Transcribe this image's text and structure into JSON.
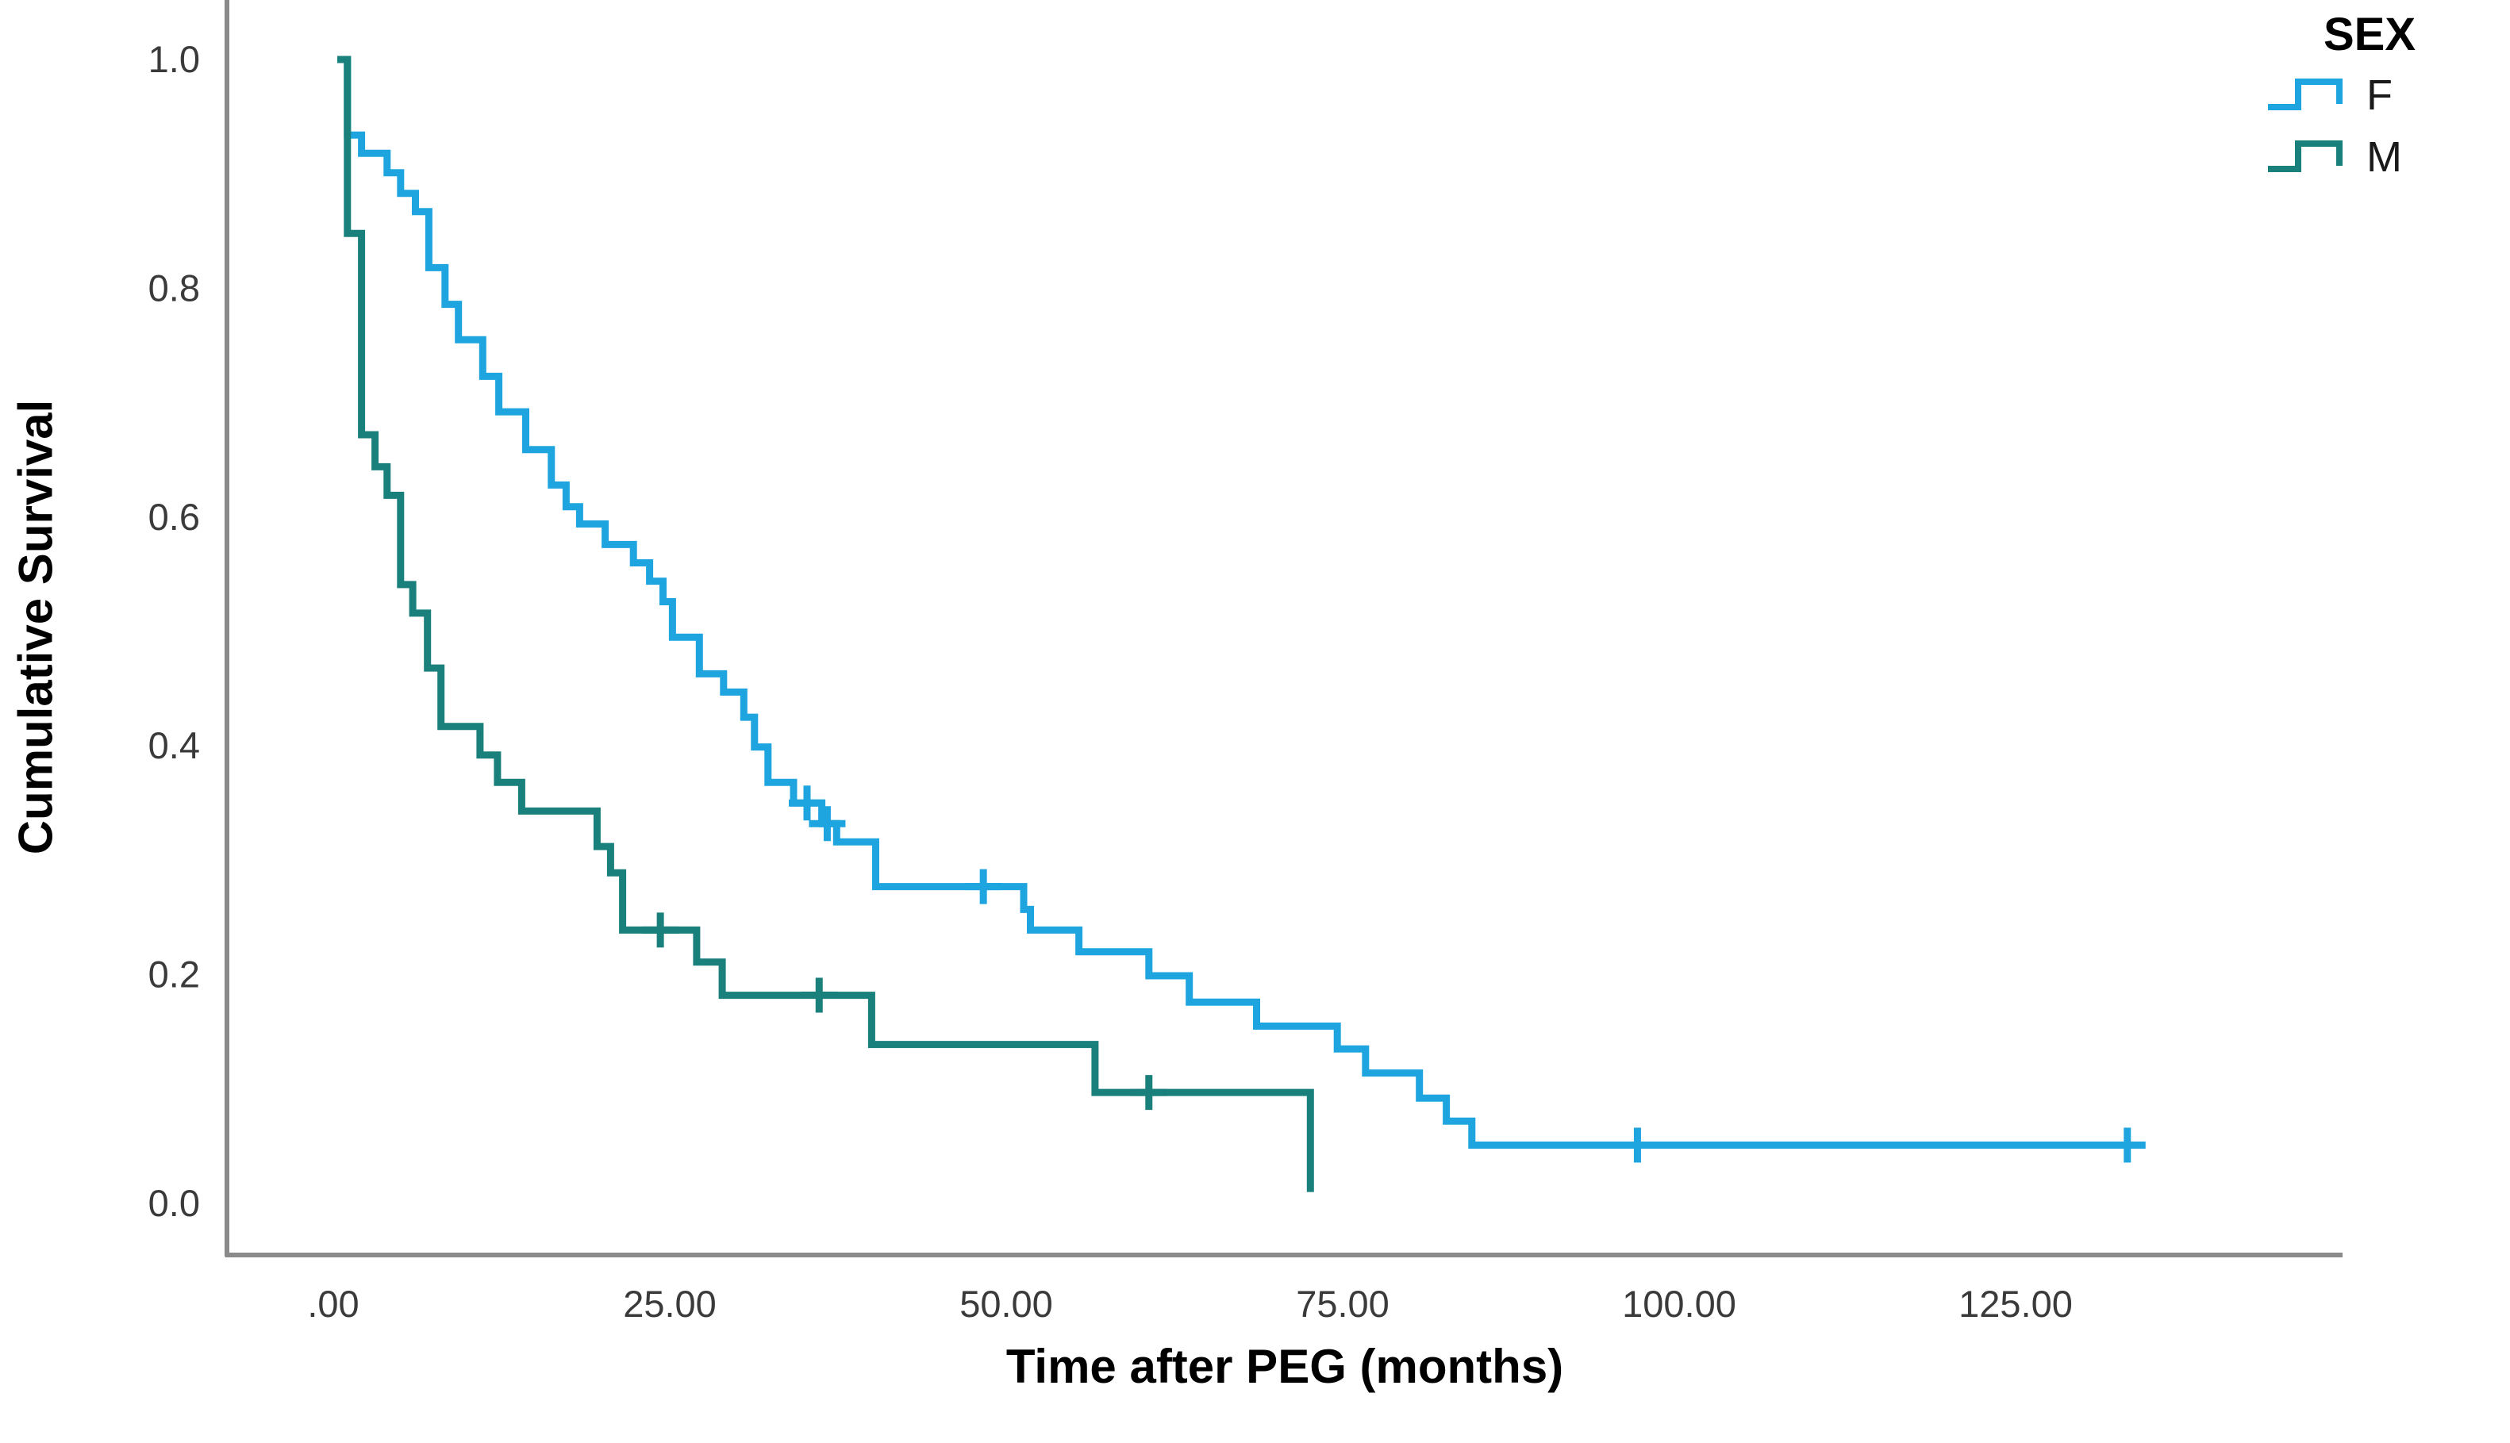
{
  "chart_data": {
    "type": "line",
    "subtype": "kaplan-meier-step",
    "title": "",
    "xlabel": "Time after PEG (months)",
    "ylabel": "Cumulative Survival",
    "xlim": [
      -8,
      149
    ],
    "ylim": [
      0.0,
      1.0
    ],
    "grid": false,
    "axis_color": "#8a8a8a",
    "tick_label_color": "#3a3a3a",
    "x_ticks": [
      {
        "value": 0,
        "label": ".00"
      },
      {
        "value": 25,
        "label": "25.00"
      },
      {
        "value": 50,
        "label": "50.00"
      },
      {
        "value": 75,
        "label": "75.00"
      },
      {
        "value": 100,
        "label": "100.00"
      },
      {
        "value": 125,
        "label": "125.00"
      }
    ],
    "y_ticks": [
      {
        "value": 1.0,
        "label": "1.0"
      },
      {
        "value": 0.8,
        "label": "0.8"
      },
      {
        "value": 0.6,
        "label": "0.6"
      },
      {
        "value": 0.4,
        "label": "0.4"
      },
      {
        "value": 0.2,
        "label": "0.2"
      },
      {
        "value": 0.0,
        "label": "0.0"
      }
    ],
    "legend": {
      "title": "SEX",
      "position": "top-right"
    },
    "series": [
      {
        "name": "F",
        "color": "#1ea5e0",
        "steps": [
          [
            0.3,
            1.0
          ],
          [
            1.05,
            0.934
          ],
          [
            2.1,
            0.918
          ],
          [
            4.0,
            0.901
          ],
          [
            5.0,
            0.883
          ],
          [
            6.1,
            0.867
          ],
          [
            7.1,
            0.818
          ],
          [
            8.3,
            0.786
          ],
          [
            9.3,
            0.755
          ],
          [
            11.1,
            0.723
          ],
          [
            12.3,
            0.692
          ],
          [
            14.3,
            0.659
          ],
          [
            16.2,
            0.628
          ],
          [
            17.3,
            0.609
          ],
          [
            18.3,
            0.594
          ],
          [
            20.2,
            0.576
          ],
          [
            22.3,
            0.56
          ],
          [
            23.5,
            0.544
          ],
          [
            24.5,
            0.526
          ],
          [
            25.2,
            0.495
          ],
          [
            27.2,
            0.463
          ],
          [
            29.0,
            0.447
          ],
          [
            30.5,
            0.425
          ],
          [
            31.3,
            0.399
          ],
          [
            32.3,
            0.368
          ],
          [
            34.2,
            0.35
          ],
          [
            36.3,
            0.332
          ],
          [
            37.4,
            0.316
          ],
          [
            40.3,
            0.277
          ],
          [
            51.3,
            0.257
          ],
          [
            51.8,
            0.239
          ],
          [
            55.4,
            0.22
          ],
          [
            60.6,
            0.199
          ],
          [
            63.6,
            0.176
          ],
          [
            68.6,
            0.155
          ],
          [
            74.6,
            0.135
          ],
          [
            76.7,
            0.114
          ],
          [
            80.7,
            0.092
          ],
          [
            82.7,
            0.072
          ],
          [
            84.6,
            0.051
          ]
        ],
        "end_time": 133.3,
        "censors": [
          [
            35.2,
            0.35
          ],
          [
            36.7,
            0.332
          ],
          [
            48.3,
            0.277
          ],
          [
            96.9,
            0.051
          ],
          [
            133.3,
            0.051
          ]
        ]
      },
      {
        "name": "M",
        "color": "#1a807c",
        "steps": [
          [
            0.3,
            1.0
          ],
          [
            1.05,
            0.848
          ],
          [
            2.1,
            0.672
          ],
          [
            3.1,
            0.644
          ],
          [
            4.0,
            0.619
          ],
          [
            5.0,
            0.541
          ],
          [
            5.9,
            0.516
          ],
          [
            7.0,
            0.468
          ],
          [
            8.0,
            0.417
          ],
          [
            10.9,
            0.392
          ],
          [
            12.2,
            0.368
          ],
          [
            14.0,
            0.343
          ],
          [
            19.6,
            0.312
          ],
          [
            20.6,
            0.289
          ],
          [
            21.5,
            0.239
          ],
          [
            27.0,
            0.211
          ],
          [
            28.9,
            0.182
          ],
          [
            40.0,
            0.139
          ],
          [
            56.6,
            0.097
          ],
          [
            72.6,
            0.01
          ]
        ],
        "end_time": null,
        "censors": [
          [
            24.3,
            0.239
          ],
          [
            36.1,
            0.182
          ],
          [
            60.6,
            0.097
          ]
        ]
      }
    ]
  },
  "labels": {
    "x_axis_title": "Time after PEG (months)",
    "y_axis_title": "Cumulative Survival",
    "legend_title": "SEX",
    "legend_f": "F",
    "legend_m": "M"
  }
}
